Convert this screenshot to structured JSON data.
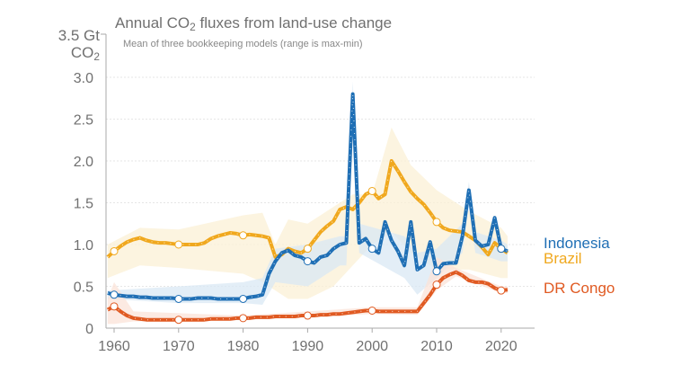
{
  "chart_data": {
    "type": "line",
    "title_prefix": "Annual CO",
    "title_sub": "2",
    "title_suffix": " fluxes from land-use change",
    "subtitle": "Mean of three bookkeeping models (range is max-min)",
    "ylabel_top": "3.5 Gt",
    "ylabel_unit": "CO",
    "ylabel_unit_sub": "2",
    "xlim": [
      1958.5,
      2025
    ],
    "ylim": [
      0,
      3.5
    ],
    "xticks": [
      1960,
      1970,
      1980,
      1990,
      2000,
      2010,
      2020
    ],
    "yticks": [
      "0",
      "0.5",
      "1.0",
      "1.5",
      "2.0",
      "2.5",
      "3.0"
    ],
    "grid": true,
    "legend": "right-end labels",
    "marker_years": [
      1960,
      1970,
      1980,
      1990,
      2000,
      2010,
      2020
    ],
    "x": [
      1959,
      1960,
      1961,
      1962,
      1963,
      1964,
      1965,
      1966,
      1967,
      1968,
      1969,
      1970,
      1971,
      1972,
      1973,
      1974,
      1975,
      1976,
      1977,
      1978,
      1979,
      1980,
      1981,
      1982,
      1983,
      1984,
      1985,
      1986,
      1987,
      1988,
      1989,
      1990,
      1991,
      1992,
      1993,
      1994,
      1995,
      1996,
      1997,
      1998,
      1999,
      2000,
      2001,
      2002,
      2003,
      2004,
      2005,
      2006,
      2007,
      2008,
      2009,
      2010,
      2011,
      2012,
      2013,
      2014,
      2015,
      2016,
      2017,
      2018,
      2019,
      2020,
      2021
    ],
    "series": [
      {
        "name": "Brazil",
        "color": "#f0a81e",
        "band_color": "#fbf0d6",
        "values": [
          0.85,
          0.92,
          0.98,
          1.03,
          1.06,
          1.08,
          1.05,
          1.03,
          1.02,
          1.02,
          1.01,
          1.0,
          1.0,
          1.0,
          1.0,
          1.02,
          1.07,
          1.1,
          1.12,
          1.14,
          1.13,
          1.11,
          1.12,
          1.11,
          1.1,
          1.08,
          0.85,
          0.88,
          0.95,
          0.92,
          0.9,
          0.95,
          1.05,
          1.15,
          1.22,
          1.28,
          1.42,
          1.45,
          1.42,
          1.5,
          1.6,
          1.64,
          1.55,
          1.6,
          2.0,
          1.88,
          1.75,
          1.63,
          1.55,
          1.48,
          1.38,
          1.27,
          1.2,
          1.17,
          1.16,
          1.15,
          1.1,
          1.05,
          0.97,
          0.88,
          1.02,
          0.95,
          0.9
        ],
        "range_years": [
          1959,
          1964,
          1970,
          1980,
          1983,
          1985,
          1987,
          1990,
          1994,
          1997,
          2000,
          2003,
          2006,
          2010,
          2015,
          2020,
          2021
        ],
        "range_low": [
          0.6,
          0.75,
          0.72,
          0.65,
          0.55,
          0.45,
          0.35,
          0.35,
          0.5,
          0.75,
          1.0,
          1.15,
          0.9,
          0.7,
          0.7,
          0.6,
          0.6
        ],
        "range_high": [
          1.0,
          1.2,
          1.18,
          1.35,
          1.38,
          1.0,
          1.3,
          1.25,
          1.45,
          1.6,
          1.6,
          2.4,
          1.95,
          1.65,
          1.4,
          1.2,
          1.1
        ]
      },
      {
        "name": "Indonesia",
        "color": "#1f6fb5",
        "band_color": "#d9e8f4",
        "values": [
          0.42,
          0.4,
          0.39,
          0.38,
          0.38,
          0.37,
          0.37,
          0.36,
          0.36,
          0.36,
          0.36,
          0.35,
          0.35,
          0.35,
          0.36,
          0.36,
          0.36,
          0.35,
          0.35,
          0.35,
          0.35,
          0.35,
          0.37,
          0.38,
          0.4,
          0.65,
          0.8,
          0.9,
          0.93,
          0.87,
          0.85,
          0.8,
          0.78,
          0.85,
          0.87,
          0.95,
          1.0,
          1.02,
          2.8,
          1.02,
          1.07,
          0.95,
          0.9,
          1.27,
          1.05,
          0.92,
          0.75,
          1.27,
          0.7,
          0.75,
          1.03,
          0.68,
          0.77,
          0.78,
          0.78,
          1.1,
          1.65,
          1.05,
          0.98,
          1.0,
          1.32,
          0.95,
          0.92
        ],
        "range_years": [
          1959,
          1970,
          1980,
          1983,
          1985,
          1990,
          1995,
          1996,
          1997,
          1998,
          2005,
          2007,
          2010,
          2014,
          2015,
          2016,
          2020,
          2021
        ],
        "range_low": [
          0.35,
          0.3,
          0.3,
          0.28,
          0.55,
          0.5,
          0.75,
          0.75,
          2.6,
          0.9,
          0.6,
          0.4,
          0.6,
          0.9,
          1.45,
          0.9,
          0.8,
          0.8
        ],
        "range_high": [
          0.45,
          0.5,
          0.55,
          0.6,
          0.95,
          1.0,
          1.1,
          1.1,
          2.95,
          1.25,
          1.1,
          0.9,
          0.95,
          1.25,
          1.75,
          1.15,
          1.05,
          1.0
        ]
      },
      {
        "name": "DR Congo",
        "color": "#e05a22",
        "band_color": "#fbe3d8",
        "values": [
          0.22,
          0.26,
          0.2,
          0.15,
          0.12,
          0.11,
          0.1,
          0.1,
          0.1,
          0.1,
          0.1,
          0.1,
          0.1,
          0.1,
          0.1,
          0.1,
          0.11,
          0.11,
          0.11,
          0.11,
          0.12,
          0.12,
          0.12,
          0.13,
          0.13,
          0.13,
          0.14,
          0.14,
          0.14,
          0.14,
          0.15,
          0.15,
          0.15,
          0.16,
          0.16,
          0.17,
          0.17,
          0.18,
          0.19,
          0.2,
          0.21,
          0.21,
          0.2,
          0.2,
          0.2,
          0.2,
          0.2,
          0.2,
          0.2,
          0.3,
          0.4,
          0.52,
          0.6,
          0.64,
          0.67,
          0.63,
          0.57,
          0.55,
          0.55,
          0.53,
          0.48,
          0.45,
          0.46
        ],
        "range_years": [
          1959,
          1960,
          1963,
          1980,
          2000,
          2007,
          2010,
          2013,
          2020,
          2021
        ],
        "range_low": [
          0.05,
          0.05,
          0.08,
          0.1,
          0.17,
          0.16,
          0.45,
          0.62,
          0.42,
          0.42
        ],
        "range_high": [
          0.35,
          0.55,
          0.2,
          0.15,
          0.25,
          0.25,
          0.85,
          0.72,
          0.5,
          0.5
        ]
      }
    ]
  }
}
